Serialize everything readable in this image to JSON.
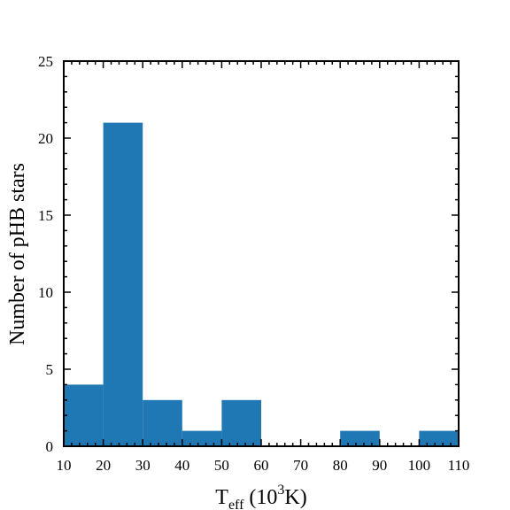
{
  "chart_data": {
    "type": "bar",
    "bins": [
      {
        "x0": 10,
        "x1": 20,
        "value": 4
      },
      {
        "x0": 20,
        "x1": 30,
        "value": 21
      },
      {
        "x0": 30,
        "x1": 40,
        "value": 3
      },
      {
        "x0": 40,
        "x1": 50,
        "value": 1
      },
      {
        "x0": 50,
        "x1": 60,
        "value": 3
      },
      {
        "x0": 60,
        "x1": 70,
        "value": 0
      },
      {
        "x0": 70,
        "x1": 80,
        "value": 0
      },
      {
        "x0": 80,
        "x1": 90,
        "value": 1
      },
      {
        "x0": 90,
        "x1": 100,
        "value": 0
      },
      {
        "x0": 100,
        "x1": 110,
        "value": 1
      }
    ],
    "xlabel": {
      "main": "T",
      "sub": "eff",
      "pre": " (10",
      "sup": "3",
      "post": "K)"
    },
    "ylabel": "Number of pHB stars",
    "xlim": [
      10,
      110
    ],
    "ylim": [
      0,
      25
    ],
    "xticks": [
      "10",
      "20",
      "30",
      "40",
      "50",
      "60",
      "70",
      "80",
      "90",
      "100",
      "110"
    ],
    "yticks": [
      "0",
      "5",
      "10",
      "15",
      "20",
      "25"
    ],
    "color": "#1f77b4",
    "grid": false
  }
}
